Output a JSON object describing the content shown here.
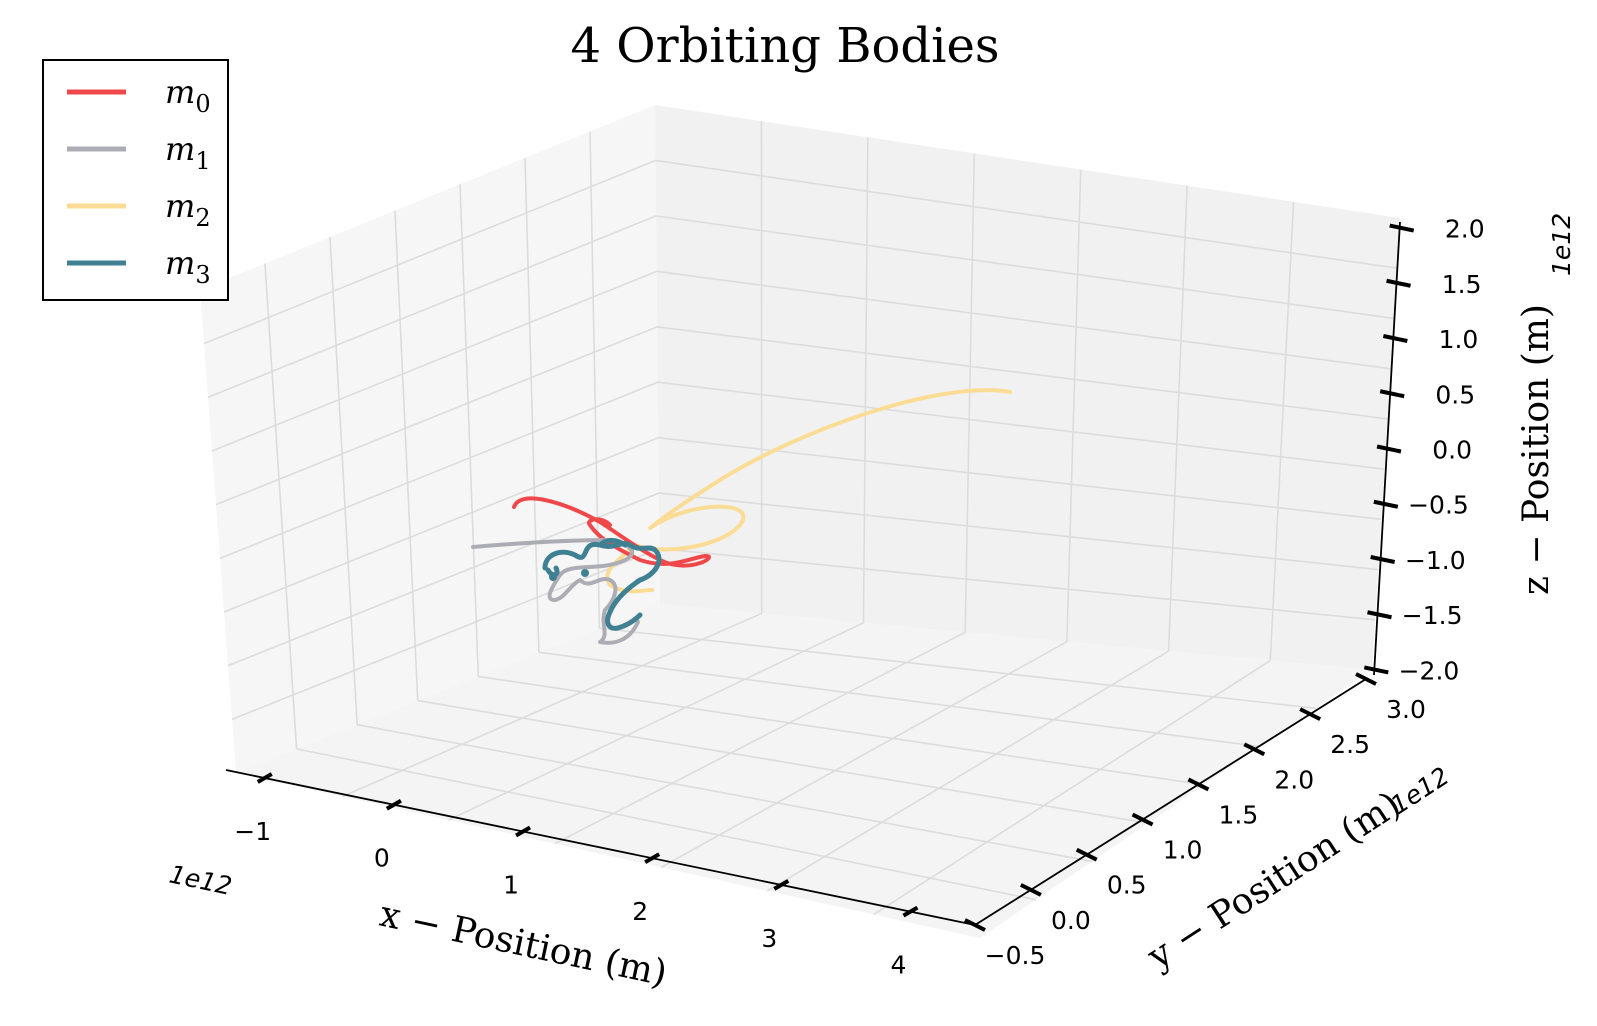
{
  "chart_data": {
    "type": "line3d",
    "title": "4 Orbiting Bodies",
    "xlabel": "x − Position (m)",
    "ylabel": "y − Position (m)",
    "zlabel": "z − Position (m)",
    "x_multiplier": "1e12",
    "y_multiplier": "1e12",
    "z_multiplier": "1e12",
    "x_ticks": [
      "−1",
      "0",
      "1",
      "2",
      "3",
      "4"
    ],
    "y_ticks": [
      "−0.5",
      "0.0",
      "0.5",
      "1.0",
      "1.5",
      "2.0",
      "2.5",
      "3.0"
    ],
    "z_ticks": [
      "−2.0",
      "−1.5",
      "−1.0",
      "−0.5",
      "0.0",
      "0.5",
      "1.0",
      "1.5",
      "2.0"
    ],
    "grid": true,
    "legend": {
      "position": "top-left",
      "entries": [
        {
          "base": "m",
          "sub": "0",
          "color": "#f0484a"
        },
        {
          "base": "m",
          "sub": "1",
          "color": "#acacb4"
        },
        {
          "base": "m",
          "sub": "2",
          "color": "#fbdc95"
        },
        {
          "base": "m",
          "sub": "3",
          "color": "#3f8092"
        }
      ]
    }
  }
}
